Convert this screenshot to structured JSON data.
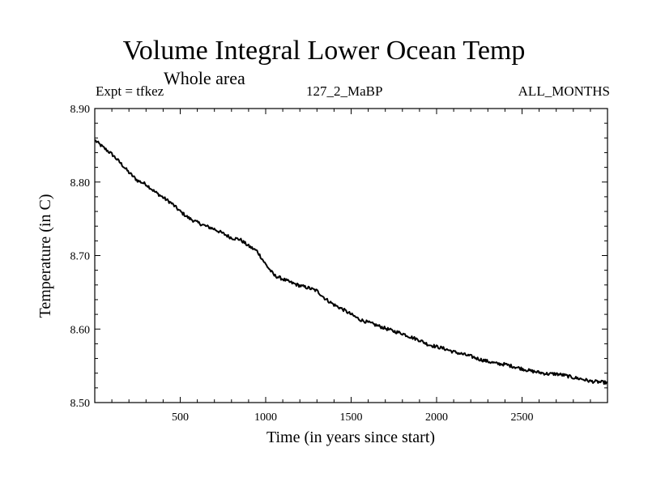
{
  "chart_data": {
    "type": "line",
    "title": "Volume Integral Lower Ocean Temp",
    "subtitle": "Whole area",
    "annotations": {
      "left": "Expt = tfkez",
      "center": "127_2_MaBP",
      "right": "ALL_MONTHS"
    },
    "xlabel": "Time (in years since start)",
    "ylabel": "Temperature (in C)",
    "xlim": [
      0,
      3000
    ],
    "ylim": [
      8.5,
      8.9
    ],
    "xticks": [
      500,
      1000,
      1500,
      2000,
      2500
    ],
    "xtick_labels": [
      "500",
      "1000",
      "1500",
      "2000",
      "2500"
    ],
    "yticks": [
      8.5,
      8.6,
      8.7,
      8.8,
      8.9
    ],
    "ytick_labels": [
      "8.50",
      "8.60",
      "8.70",
      "8.80",
      "8.90"
    ],
    "grid": false,
    "line_color": "#000000",
    "series": [
      {
        "x": [
          0,
          50,
          100,
          150,
          200,
          250,
          300,
          350,
          400,
          450,
          500,
          550,
          600,
          650,
          700,
          750,
          800,
          850,
          900,
          950,
          1000,
          1050,
          1100,
          1150,
          1200,
          1250,
          1300,
          1350,
          1400,
          1450,
          1500,
          1550,
          1600,
          1650,
          1700,
          1750,
          1800,
          1850,
          1900,
          1950,
          2000,
          2050,
          2100,
          2150,
          2200,
          2250,
          2300,
          2350,
          2400,
          2450,
          2500,
          2550,
          2600,
          2650,
          2700,
          2750,
          2800,
          2850,
          2900,
          2950,
          3000
        ],
        "values": [
          8.857,
          8.847,
          8.838,
          8.826,
          8.813,
          8.802,
          8.797,
          8.787,
          8.779,
          8.771,
          8.76,
          8.751,
          8.745,
          8.74,
          8.736,
          8.73,
          8.724,
          8.722,
          8.713,
          8.706,
          8.688,
          8.673,
          8.668,
          8.663,
          8.659,
          8.656,
          8.652,
          8.641,
          8.633,
          8.627,
          8.62,
          8.613,
          8.609,
          8.605,
          8.601,
          8.597,
          8.594,
          8.589,
          8.585,
          8.579,
          8.576,
          8.573,
          8.569,
          8.566,
          8.563,
          8.559,
          8.556,
          8.553,
          8.552,
          8.549,
          8.546,
          8.543,
          8.541,
          8.539,
          8.539,
          8.537,
          8.534,
          8.532,
          8.529,
          8.528,
          8.527
        ]
      }
    ]
  }
}
